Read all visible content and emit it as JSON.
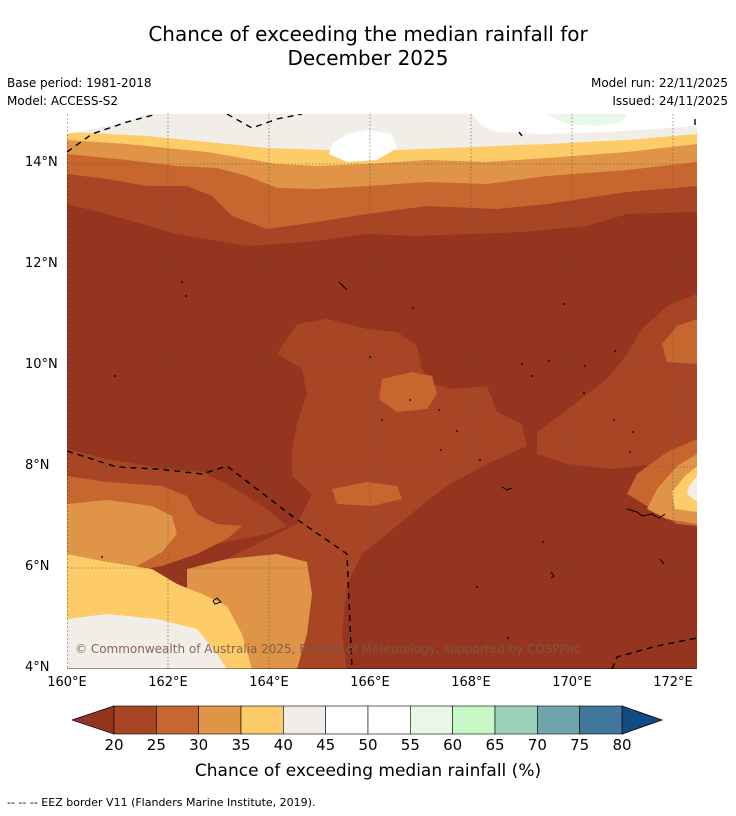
{
  "title_line1": "Chance of exceeding the median rainfall for",
  "title_line2": "December 2025",
  "meta": {
    "base_period": "Base period: 1981-2018",
    "model": "Model: ACCESS-S2",
    "model_run": "Model run: 22/11/2025",
    "issued": "Issued: 24/11/2025"
  },
  "map": {
    "copyright": "© Commonwealth of Australia 2025, Bureau of Meteorology, supported by COSPPac",
    "lat_labels": [
      "14°N",
      "12°N",
      "10°N",
      "8°N",
      "6°N",
      "4°N"
    ],
    "lon_labels": [
      "160°E",
      "162°E",
      "164°E",
      "166°E",
      "168°E",
      "170°E",
      "172°E"
    ]
  },
  "colorbar": {
    "title": "Chance of exceeding median rainfall (%)",
    "labels": [
      "20",
      "25",
      "30",
      "35",
      "40",
      "45",
      "50",
      "55",
      "60",
      "65",
      "70",
      "75",
      "80"
    ],
    "colors": [
      "#a84525",
      "#c8662f",
      "#df9448",
      "#fdcb67",
      "#f1ede7",
      "#ffffff",
      "#ffffff",
      "#e8f7e7",
      "#c8f8c6",
      "#9ecfb7",
      "#6fa5a8",
      "#42779c"
    ],
    "low_color": "#953520",
    "high_color": "#154b84"
  },
  "footnote": "-- -- -- EEZ border V11 (Flanders Marine Institute, 2019)."
}
